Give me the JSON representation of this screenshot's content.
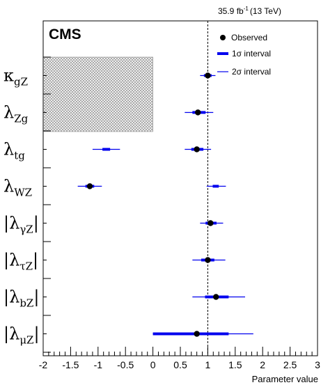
{
  "chart_data": {
    "type": "scatter",
    "luminosity_label": "35.9 fb",
    "luminosity_sup": "-1",
    "energy_label": "(13 TeV)",
    "experiment": "CMS",
    "xlabel": "Parameter value",
    "xlim": [
      -2,
      3
    ],
    "x_ticks": [
      "-2",
      "-1.5",
      "-1",
      "-0.5",
      "0",
      "0.5",
      "1",
      "1.5",
      "2",
      "2.5",
      "3"
    ],
    "reference_line": 1,
    "legend": {
      "position": "top-right",
      "observed": "Observed",
      "one_sigma": "1σ interval",
      "two_sigma": "2σ interval"
    },
    "hatched_excluded_region": {
      "x": [
        -2,
        0
      ],
      "parameters": [
        "κgZ",
        "λZg"
      ]
    },
    "parameters": [
      {
        "label": "κ",
        "sub": "gZ",
        "abs": false,
        "value": 1.0,
        "one_sigma": [
          [
            0.93,
            1.07
          ]
        ],
        "two_sigma": [
          [
            0.86,
            1.14
          ]
        ]
      },
      {
        "label": "λ",
        "sub": "Zg",
        "abs": false,
        "value": 0.82,
        "one_sigma": [
          [
            0.72,
            0.96
          ]
        ],
        "two_sigma": [
          [
            0.58,
            1.1
          ]
        ]
      },
      {
        "label": "λ",
        "sub": "tg",
        "abs": false,
        "value": 0.8,
        "one_sigma": [
          [
            0.7,
            0.92
          ],
          [
            -0.92,
            -0.78
          ]
        ],
        "two_sigma": [
          [
            0.58,
            1.06
          ],
          [
            -1.1,
            -0.6
          ]
        ]
      },
      {
        "label": "λ",
        "sub": "WZ",
        "abs": false,
        "value": -1.15,
        "one_sigma": [
          [
            -1.23,
            -1.07
          ],
          [
            1.09,
            1.2
          ]
        ],
        "two_sigma": [
          [
            -1.37,
            -0.93
          ],
          [
            0.98,
            1.33
          ]
        ]
      },
      {
        "label": "λ",
        "sub": "γZ",
        "abs": true,
        "value": 1.05,
        "one_sigma": [
          [
            0.96,
            1.16
          ]
        ],
        "two_sigma": [
          [
            0.86,
            1.28
          ]
        ]
      },
      {
        "label": "λ",
        "sub": "τZ",
        "abs": true,
        "value": 1.0,
        "one_sigma": [
          [
            0.88,
            1.12
          ]
        ],
        "two_sigma": [
          [
            0.72,
            1.32
          ]
        ]
      },
      {
        "label": "λ",
        "sub": "bZ",
        "abs": true,
        "value": 1.15,
        "one_sigma": [
          [
            0.95,
            1.38
          ]
        ],
        "two_sigma": [
          [
            0.72,
            1.68
          ]
        ]
      },
      {
        "label": "λ",
        "sub": "μZ",
        "abs": true,
        "value": 0.8,
        "one_sigma": [
          [
            0.0,
            1.38
          ]
        ],
        "two_sigma": [
          [
            0.0,
            1.83
          ]
        ]
      }
    ]
  }
}
